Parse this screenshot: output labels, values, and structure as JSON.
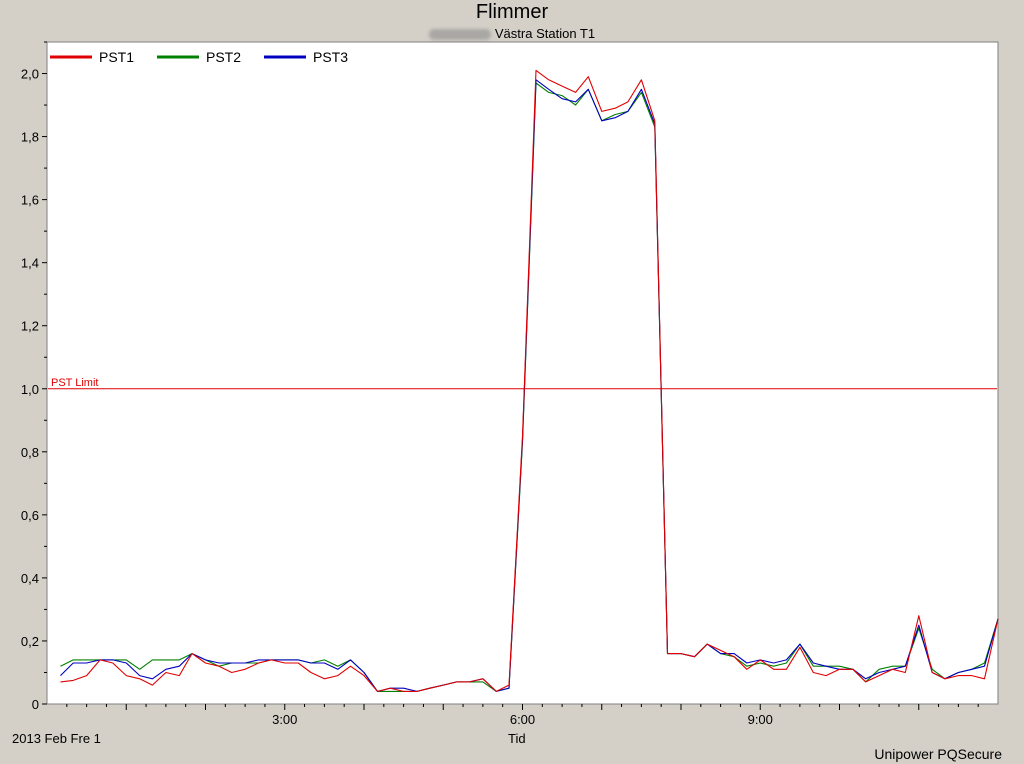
{
  "header": {
    "title": "Flimmer",
    "subtitle": "Västra Station T1"
  },
  "footer": {
    "date": "2013 Feb Fre 1",
    "brand": "Unipower PQSecure"
  },
  "colors": {
    "pst1": "#e00000",
    "pst2": "#008000",
    "pst3": "#0000c0",
    "limit": "#e00000"
  },
  "chart_data": {
    "type": "line",
    "title": "Flimmer",
    "xlabel": "Tid",
    "ylabel": "",
    "xlim": [
      0,
      12
    ],
    "ylim": [
      0,
      2.1
    ],
    "x_ticks": [
      {
        "value": 3,
        "label": "3:00"
      },
      {
        "value": 6,
        "label": "6:00"
      },
      {
        "value": 9,
        "label": "9:00"
      }
    ],
    "y_ticks": [
      {
        "value": 0,
        "label": "0"
      },
      {
        "value": 0.2,
        "label": "0,2"
      },
      {
        "value": 0.4,
        "label": "0,4"
      },
      {
        "value": 0.6,
        "label": "0,6"
      },
      {
        "value": 0.8,
        "label": "0,8"
      },
      {
        "value": 1.0,
        "label": "1,0"
      },
      {
        "value": 1.2,
        "label": "1,2"
      },
      {
        "value": 1.4,
        "label": "1,4"
      },
      {
        "value": 1.6,
        "label": "1,6"
      },
      {
        "value": 1.8,
        "label": "1,8"
      },
      {
        "value": 2.0,
        "label": "2,0"
      }
    ],
    "x": [
      0.17,
      0.33,
      0.5,
      0.67,
      0.83,
      1.0,
      1.17,
      1.33,
      1.5,
      1.67,
      1.83,
      2.0,
      2.17,
      2.33,
      2.5,
      2.67,
      2.83,
      3.0,
      3.17,
      3.33,
      3.5,
      3.67,
      3.83,
      4.0,
      4.17,
      4.33,
      4.5,
      4.67,
      4.83,
      5.0,
      5.17,
      5.33,
      5.5,
      5.67,
      5.83,
      6.0,
      6.17,
      6.33,
      6.5,
      6.67,
      6.83,
      7.0,
      7.17,
      7.33,
      7.5,
      7.67,
      7.83,
      8.0,
      8.17,
      8.33,
      8.5,
      8.67,
      8.83,
      9.0,
      9.17,
      9.33,
      9.5,
      9.67,
      9.83,
      10.0,
      10.17,
      10.33,
      10.5,
      10.67,
      10.83,
      11.0,
      11.17,
      11.33,
      11.5,
      11.67,
      11.83,
      12.0
    ],
    "series": [
      {
        "name": "PST1",
        "color": "#e00000",
        "values": [
          0.07,
          0.075,
          0.09,
          0.14,
          0.13,
          0.09,
          0.08,
          0.06,
          0.1,
          0.09,
          0.16,
          0.13,
          0.12,
          0.1,
          0.11,
          0.13,
          0.14,
          0.13,
          0.13,
          0.1,
          0.08,
          0.09,
          0.12,
          0.09,
          0.04,
          0.05,
          0.04,
          0.04,
          0.05,
          0.06,
          0.07,
          0.07,
          0.08,
          0.04,
          0.06,
          0.85,
          2.01,
          1.98,
          1.96,
          1.94,
          1.99,
          1.88,
          1.89,
          1.91,
          1.98,
          1.85,
          0.16,
          0.16,
          0.15,
          0.19,
          0.17,
          0.15,
          0.11,
          0.14,
          0.11,
          0.11,
          0.18,
          0.1,
          0.09,
          0.11,
          0.11,
          0.07,
          0.09,
          0.11,
          0.1,
          0.28,
          0.1,
          0.08,
          0.09,
          0.09,
          0.08,
          0.27
        ]
      },
      {
        "name": "PST2",
        "color": "#008000",
        "values": [
          0.12,
          0.14,
          0.14,
          0.14,
          0.14,
          0.14,
          0.11,
          0.14,
          0.14,
          0.14,
          0.16,
          0.14,
          0.12,
          0.13,
          0.13,
          0.13,
          0.14,
          0.14,
          0.14,
          0.13,
          0.14,
          0.12,
          0.14,
          0.1,
          0.04,
          0.04,
          0.04,
          0.04,
          0.05,
          0.06,
          0.07,
          0.07,
          0.07,
          0.04,
          0.05,
          0.83,
          1.97,
          1.94,
          1.93,
          1.9,
          1.95,
          1.85,
          1.87,
          1.88,
          1.94,
          1.83,
          0.16,
          0.16,
          0.15,
          0.19,
          0.16,
          0.15,
          0.12,
          0.13,
          0.12,
          0.13,
          0.19,
          0.12,
          0.12,
          0.12,
          0.11,
          0.07,
          0.11,
          0.12,
          0.12,
          0.24,
          0.11,
          0.08,
          0.1,
          0.11,
          0.13,
          0.27
        ]
      },
      {
        "name": "PST3",
        "color": "#0000c0",
        "values": [
          0.09,
          0.13,
          0.13,
          0.14,
          0.14,
          0.13,
          0.09,
          0.08,
          0.11,
          0.12,
          0.16,
          0.14,
          0.13,
          0.13,
          0.13,
          0.14,
          0.14,
          0.14,
          0.14,
          0.13,
          0.13,
          0.11,
          0.14,
          0.1,
          0.04,
          0.05,
          0.05,
          0.04,
          0.05,
          0.06,
          0.07,
          0.07,
          0.08,
          0.04,
          0.05,
          0.84,
          1.98,
          1.95,
          1.92,
          1.91,
          1.95,
          1.85,
          1.86,
          1.88,
          1.95,
          1.84,
          0.16,
          0.16,
          0.15,
          0.19,
          0.16,
          0.16,
          0.13,
          0.14,
          0.13,
          0.14,
          0.19,
          0.13,
          0.12,
          0.11,
          0.11,
          0.08,
          0.1,
          0.11,
          0.12,
          0.25,
          0.1,
          0.08,
          0.1,
          0.11,
          0.12,
          0.27
        ]
      }
    ],
    "reference_lines": [
      {
        "label": "PST Limit",
        "value": 1.0,
        "color": "#e00000"
      }
    ],
    "legend_position": "top-left",
    "grid": false
  }
}
